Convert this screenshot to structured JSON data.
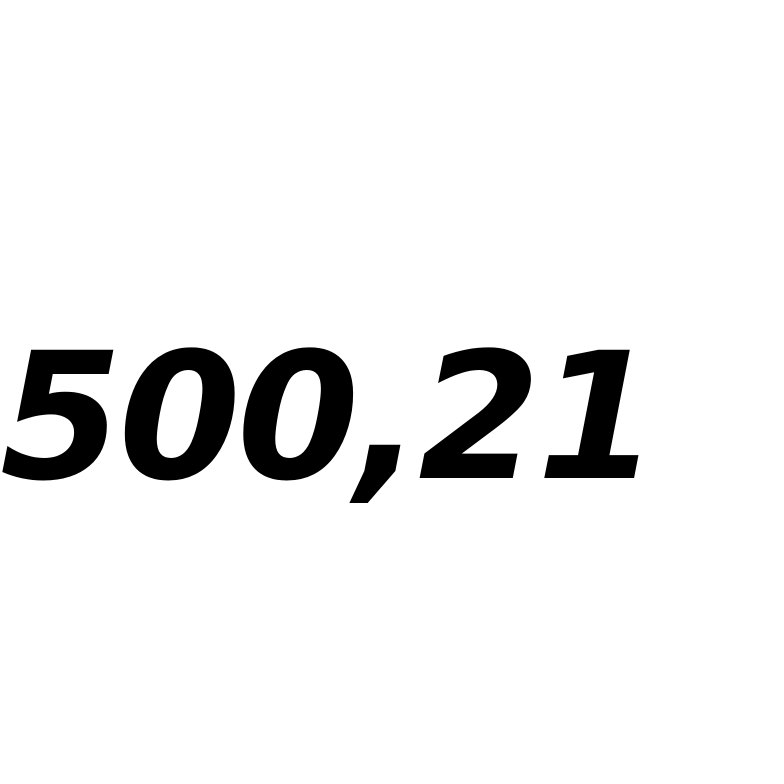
{
  "display": {
    "value_text": "500,21",
    "text_color": "#000000",
    "background_color": "#ffffff"
  }
}
